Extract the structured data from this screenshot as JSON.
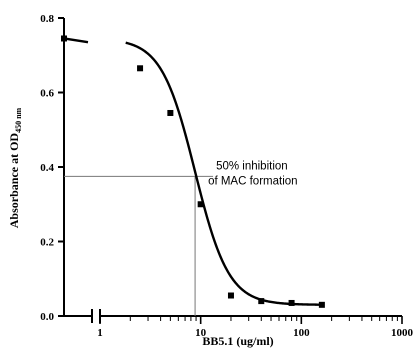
{
  "chart_data": {
    "type": "scatter",
    "title": "",
    "xlabel": "BB5.1 (ug/ml)",
    "ylabel_main": "Absorbance at OD",
    "ylabel_sub": "450 nm",
    "xscale": "log",
    "xlim": [
      1,
      1000
    ],
    "ylim": [
      0,
      0.8
    ],
    "x_ticks": [
      {
        "value": 1,
        "label": "1"
      },
      {
        "value": 10,
        "label": "10"
      },
      {
        "value": 100,
        "label": "100"
      },
      {
        "value": 1000,
        "label": "1000"
      }
    ],
    "y_ticks": [
      {
        "value": 0,
        "label": "0.0"
      },
      {
        "value": 0.2,
        "label": "0.2"
      },
      {
        "value": 0.4,
        "label": "0.4"
      },
      {
        "value": 0.6,
        "label": "0.6"
      },
      {
        "value": 0.8,
        "label": "0.8"
      }
    ],
    "zero_point": {
      "x": 0,
      "y": 0.745
    },
    "points": [
      {
        "x": 2.5,
        "y": 0.665
      },
      {
        "x": 5,
        "y": 0.545
      },
      {
        "x": 10,
        "y": 0.3
      },
      {
        "x": 20,
        "y": 0.055
      },
      {
        "x": 40,
        "y": 0.04
      },
      {
        "x": 80,
        "y": 0.035
      },
      {
        "x": 160,
        "y": 0.03
      }
    ],
    "fit": {
      "top": 0.745,
      "bottom": 0.03,
      "ec50": 8.8,
      "hill": 2.6
    },
    "annotation": {
      "lines": [
        "50% inhibition",
        "of MAC formation"
      ],
      "x": 8.8,
      "y": 0.375
    },
    "grid": false,
    "axis_break": true
  }
}
